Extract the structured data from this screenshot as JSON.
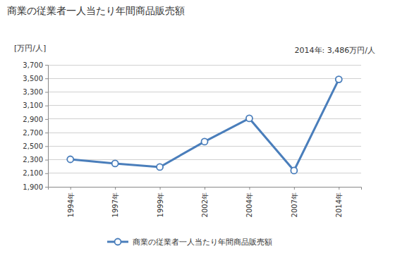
{
  "chart_data": {
    "type": "line",
    "title": "商業の従業者一人当たり年間商品販売額",
    "ylabel": "[万円/人]",
    "annotation": "2014年: 3,486万円/人",
    "categories": [
      "1994年",
      "1997年",
      "1999年",
      "2002年",
      "2004年",
      "2007年",
      "2014年"
    ],
    "series": [
      {
        "name": "商業の従業者一人当たり年間商品販売額",
        "color": "#4a7ebb",
        "marker": "circle",
        "values": [
          2306,
          2244,
          2192,
          2567,
          2910,
          2140,
          3486
        ]
      }
    ],
    "ylim": [
      1900,
      3700
    ],
    "yticks": [
      {
        "value": 1900,
        "label": "1,900"
      },
      {
        "value": 2100,
        "label": "2,100"
      },
      {
        "value": 2300,
        "label": "2,300"
      },
      {
        "value": 2500,
        "label": "2,500"
      },
      {
        "value": 2700,
        "label": "2,700"
      },
      {
        "value": 2900,
        "label": "2,900"
      },
      {
        "value": 3100,
        "label": "3,100"
      },
      {
        "value": 3300,
        "label": "3,300"
      },
      {
        "value": 3500,
        "label": "3,500"
      },
      {
        "value": 3700,
        "label": "3,700"
      }
    ],
    "grid": true,
    "legend": "bottom"
  }
}
